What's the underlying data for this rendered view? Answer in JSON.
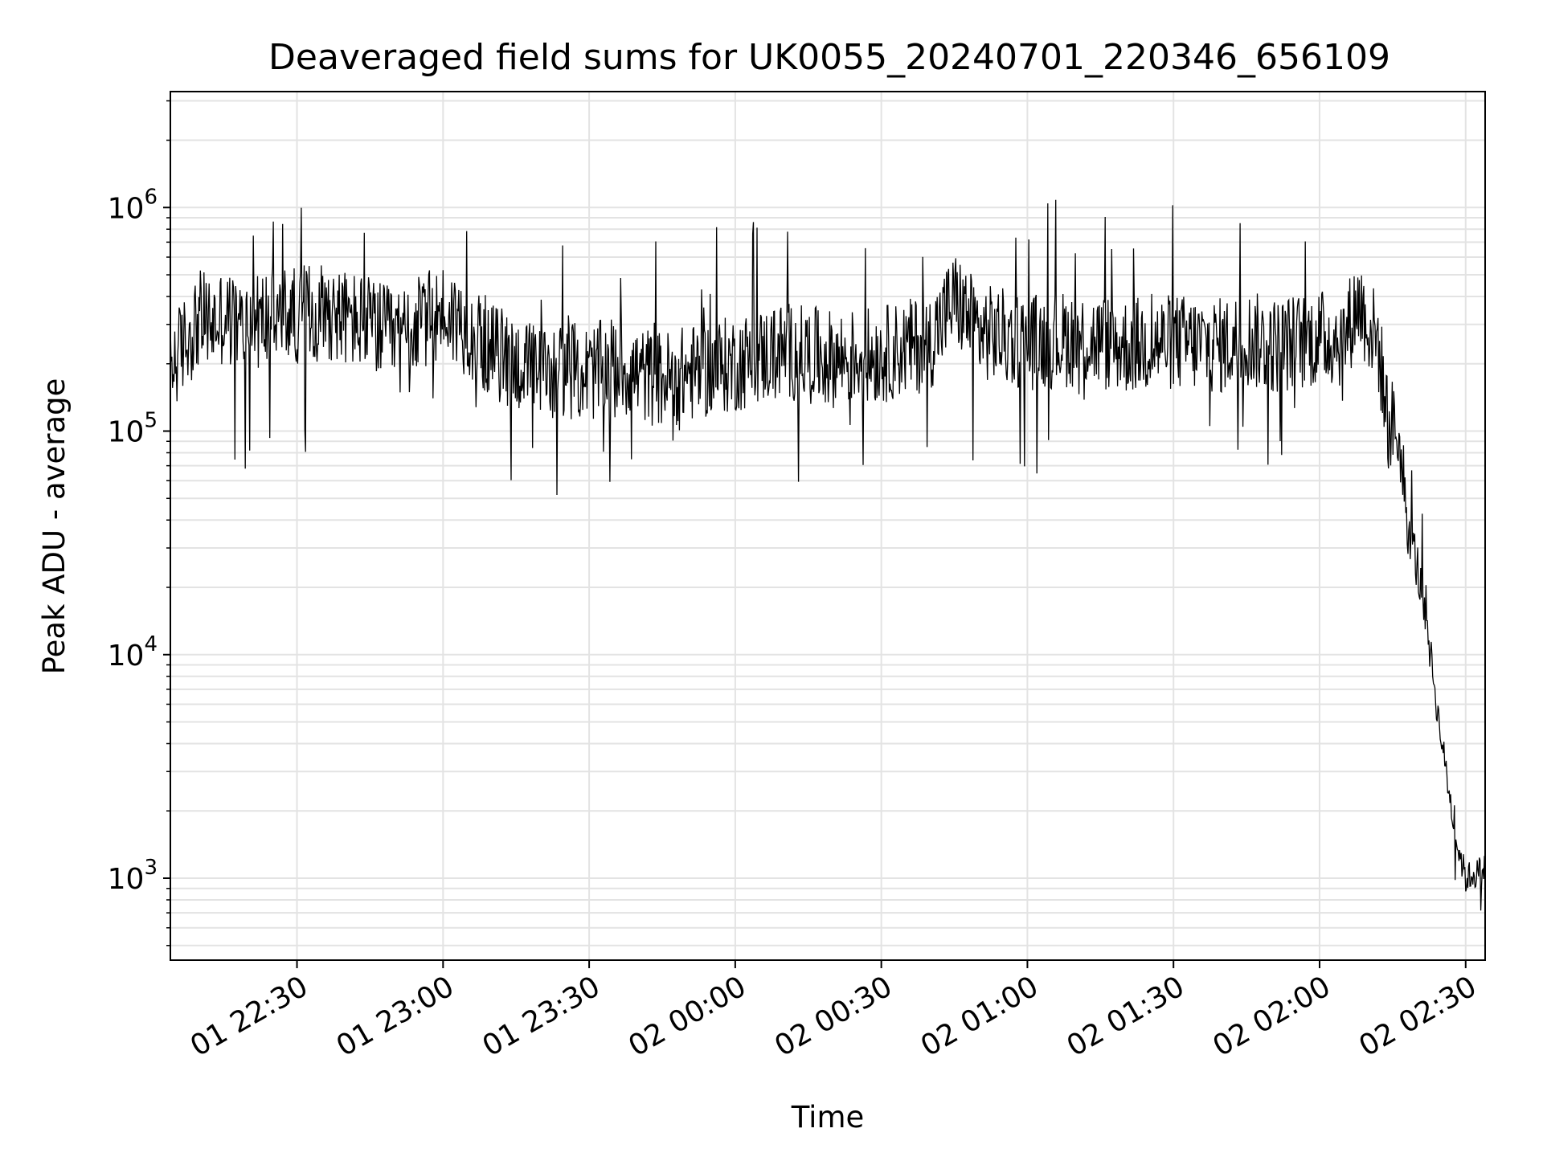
{
  "chart_data": {
    "type": "line",
    "title": "Deaveraged field sums for UK0055_20240701_220346_656109",
    "xlabel": "Time",
    "ylabel": "Peak ADU - average",
    "yscale": "log",
    "ylim": [
      430,
      3300000
    ],
    "xlim": [
      "2024-07-01 22:04",
      "2024-07-02 02:34"
    ],
    "x_ticks": [
      {
        "value": "2024-07-01 22:30",
        "label": "01 22:30"
      },
      {
        "value": "2024-07-01 23:00",
        "label": "01 23:00"
      },
      {
        "value": "2024-07-01 23:30",
        "label": "01 23:30"
      },
      {
        "value": "2024-07-02 00:00",
        "label": "02 00:00"
      },
      {
        "value": "2024-07-02 00:30",
        "label": "02 00:30"
      },
      {
        "value": "2024-07-02 01:00",
        "label": "02 01:00"
      },
      {
        "value": "2024-07-02 01:30",
        "label": "02 01:30"
      },
      {
        "value": "2024-07-02 02:00",
        "label": "02 02:00"
      },
      {
        "value": "2024-07-02 02:30",
        "label": "02 02:30"
      }
    ],
    "y_ticks": [
      {
        "value": 1000,
        "base": "10",
        "exp": "3"
      },
      {
        "value": 10000,
        "base": "10",
        "exp": "4"
      },
      {
        "value": 100000,
        "base": "10",
        "exp": "5"
      },
      {
        "value": 1000000,
        "base": "10",
        "exp": "6"
      }
    ],
    "grid": true,
    "line_color": "#000000",
    "series": [
      {
        "x": [
          "2024-07-01 22:04",
          "2024-07-01 22:07",
          "2024-07-01 22:10",
          "2024-07-01 22:13",
          "2024-07-01 22:15",
          "2024-07-01 22:18",
          "2024-07-01 22:20",
          "2024-07-01 22:25",
          "2024-07-01 22:30",
          "2024-07-01 22:35",
          "2024-07-01 22:40",
          "2024-07-01 22:45",
          "2024-07-01 22:50",
          "2024-07-01 22:55",
          "2024-07-01 23:00",
          "2024-07-01 23:05",
          "2024-07-01 23:10",
          "2024-07-01 23:15",
          "2024-07-01 23:20",
          "2024-07-01 23:25",
          "2024-07-01 23:30",
          "2024-07-01 23:35",
          "2024-07-01 23:40",
          "2024-07-01 23:45",
          "2024-07-01 23:50",
          "2024-07-01 23:55",
          "2024-07-02 00:00",
          "2024-07-02 00:10",
          "2024-07-02 00:20",
          "2024-07-02 00:30",
          "2024-07-02 00:40",
          "2024-07-02 00:45",
          "2024-07-02 00:50",
          "2024-07-02 01:00",
          "2024-07-02 01:10",
          "2024-07-02 01:20",
          "2024-07-02 01:30",
          "2024-07-02 01:40",
          "2024-07-02 01:45",
          "2024-07-02 01:50",
          "2024-07-02 01:55",
          "2024-07-02 02:00",
          "2024-07-02 02:05",
          "2024-07-02 02:08",
          "2024-07-02 02:10",
          "2024-07-02 02:12",
          "2024-07-02 02:14",
          "2024-07-02 02:16",
          "2024-07-02 02:18",
          "2024-07-02 02:20",
          "2024-07-02 02:22",
          "2024-07-02 02:24",
          "2024-07-02 02:26",
          "2024-07-02 02:28",
          "2024-07-02 02:30",
          "2024-07-02 02:34"
        ],
        "y": [
          190000,
          250000,
          320000,
          300000,
          330000,
          290000,
          300000,
          330000,
          330000,
          360000,
          320000,
          300000,
          260000,
          300000,
          340000,
          290000,
          230000,
          200000,
          180000,
          190000,
          180000,
          200000,
          180000,
          170000,
          180000,
          190000,
          200000,
          230000,
          210000,
          220000,
          250000,
          390000,
          280000,
          250000,
          260000,
          240000,
          250000,
          240000,
          260000,
          240000,
          250000,
          260000,
          260000,
          380000,
          300000,
          250000,
          110000,
          100000,
          40000,
          25000,
          15000,
          6000,
          3000,
          1500,
          1000,
          1100
        ]
      }
    ]
  }
}
